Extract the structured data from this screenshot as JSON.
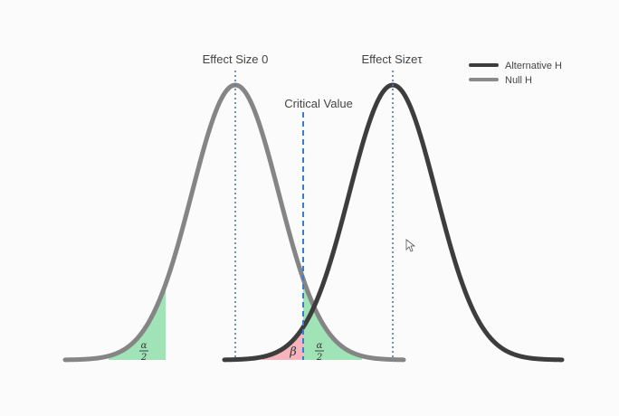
{
  "labels": {
    "effect_size_0": "Effect Size 0",
    "effect_size_tau": "Effect Sizeτ",
    "critical_value": "Critical Value"
  },
  "legend": {
    "items": [
      {
        "label": "Alternative H",
        "color": "#3d3d3d"
      },
      {
        "label": "Null H",
        "color": "#8a8a8a"
      }
    ]
  },
  "regions": {
    "alpha_left": {
      "numerator": "α",
      "denominator": "2",
      "color": "#9fe3b6"
    },
    "alpha_right": {
      "numerator": "α",
      "denominator": "2",
      "color": "#9fe3b6"
    },
    "beta": {
      "symbol": "β",
      "color": "#f6b4bd"
    }
  },
  "colors": {
    "null_curve": "#858585",
    "alternative_curve": "#3d3d3d",
    "mean_line": "#4a78c2",
    "critical_line": "#3b7bd6",
    "background": "#fbfbfb"
  }
}
